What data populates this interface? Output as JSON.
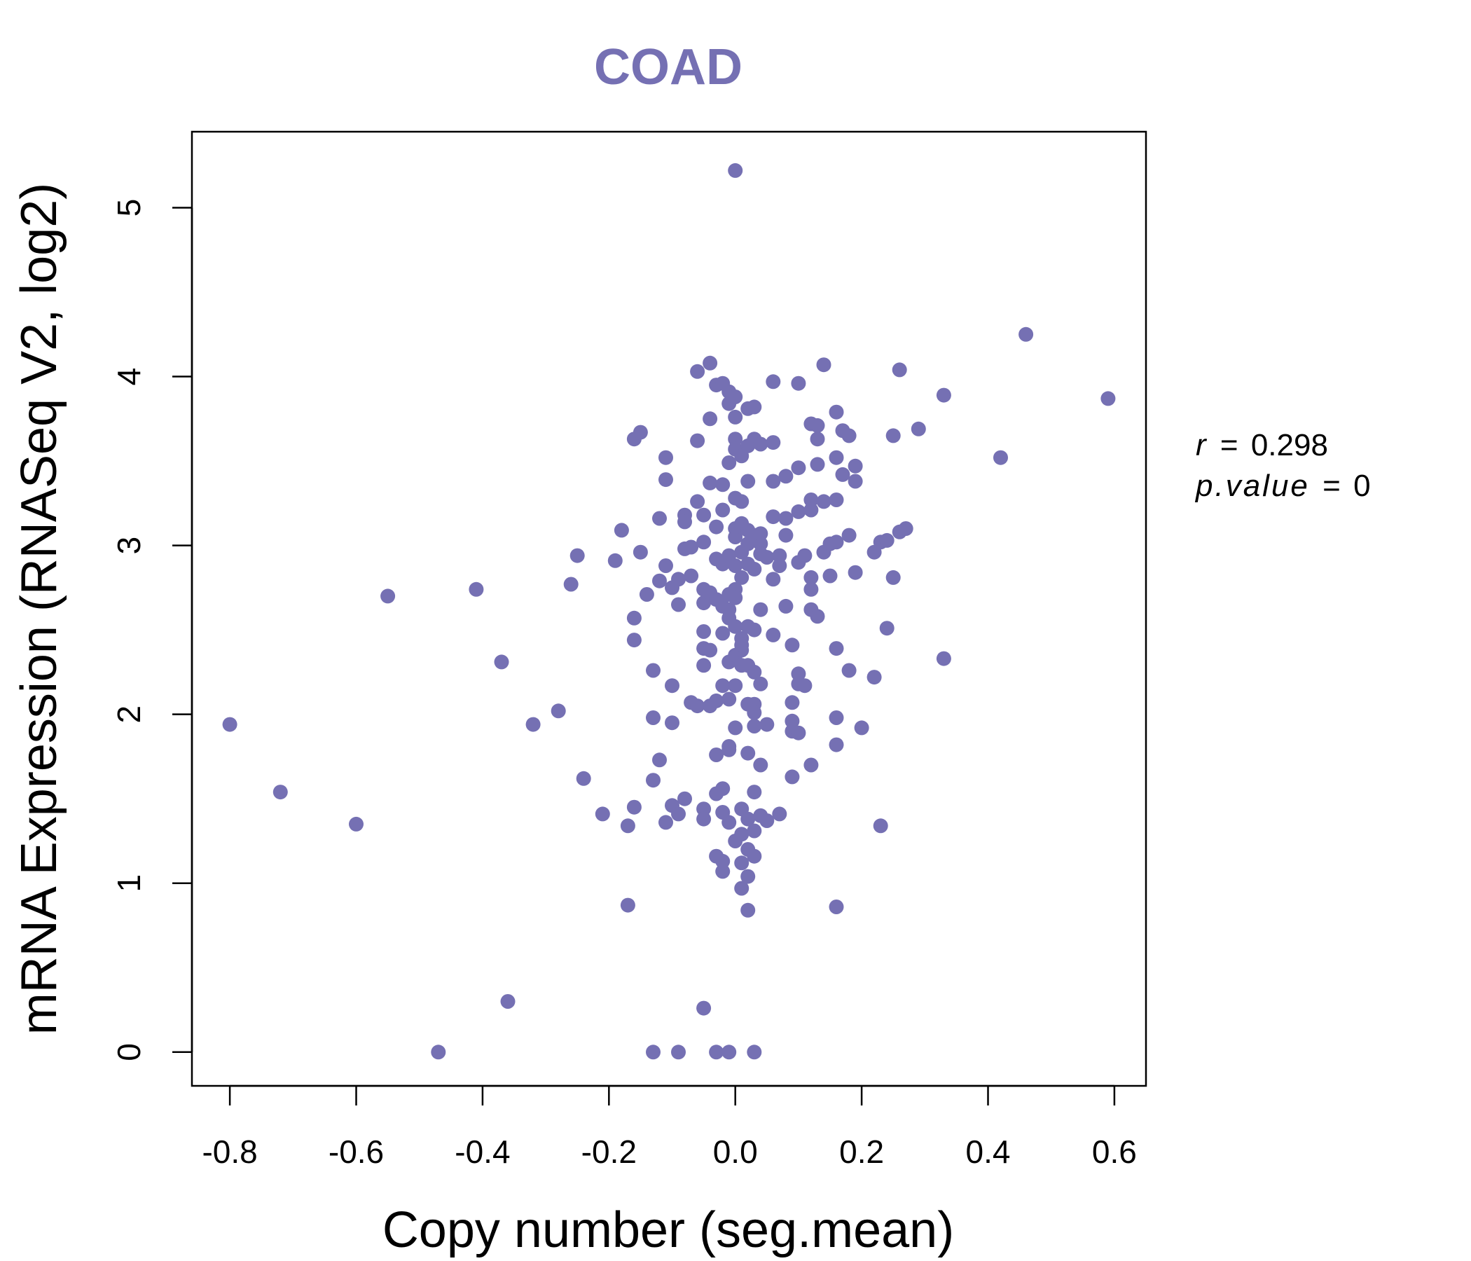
{
  "chart_data": {
    "type": "scatter",
    "title": "COAD",
    "xlabel": "Copy number (seg.mean)",
    "ylabel": "mRNA Expression (RNASeq V2, log2)",
    "xlim": [
      -0.86,
      0.65
    ],
    "ylim": [
      -0.2,
      5.45
    ],
    "xticks": [
      -0.8,
      -0.6,
      -0.4,
      -0.2,
      0.0,
      0.2,
      0.4,
      0.6
    ],
    "xtick_labels": [
      "-0.8",
      "-0.6",
      "-0.4",
      "-0.2",
      "0.0",
      "0.2",
      "0.4",
      "0.6"
    ],
    "yticks": [
      0,
      1,
      2,
      3,
      4,
      5
    ],
    "ytick_labels": [
      "0",
      "1",
      "2",
      "3",
      "4",
      "5"
    ],
    "stats": {
      "r_label": "r",
      "r_value": "0.298",
      "p_label": "p.value",
      "p_value": "0"
    },
    "colors": {
      "point": "#7570b3",
      "title": "#7570b3",
      "axis": "#000000"
    },
    "points": [
      [
        -0.8,
        1.94
      ],
      [
        -0.72,
        1.54
      ],
      [
        -0.6,
        1.35
      ],
      [
        -0.55,
        2.7
      ],
      [
        -0.47,
        0.0
      ],
      [
        -0.41,
        2.74
      ],
      [
        -0.37,
        2.31
      ],
      [
        -0.36,
        0.3
      ],
      [
        -0.32,
        1.94
      ],
      [
        -0.28,
        2.02
      ],
      [
        -0.26,
        2.77
      ],
      [
        -0.25,
        2.94
      ],
      [
        -0.24,
        1.62
      ],
      [
        -0.21,
        1.41
      ],
      [
        -0.19,
        2.91
      ],
      [
        -0.18,
        3.09
      ],
      [
        -0.17,
        1.34
      ],
      [
        -0.17,
        0.87
      ],
      [
        -0.16,
        2.44
      ],
      [
        -0.16,
        3.63
      ],
      [
        -0.15,
        3.67
      ],
      [
        -0.16,
        2.57
      ],
      [
        -0.16,
        1.45
      ],
      [
        -0.15,
        2.96
      ],
      [
        -0.14,
        2.71
      ],
      [
        -0.13,
        1.98
      ],
      [
        -0.13,
        2.26
      ],
      [
        -0.13,
        1.61
      ],
      [
        -0.12,
        1.73
      ],
      [
        -0.12,
        2.79
      ],
      [
        -0.12,
        3.16
      ],
      [
        -0.11,
        3.52
      ],
      [
        -0.11,
        3.39
      ],
      [
        -0.11,
        2.88
      ],
      [
        -0.11,
        1.36
      ],
      [
        -0.1,
        2.17
      ],
      [
        -0.1,
        1.95
      ],
      [
        -0.1,
        2.75
      ],
      [
        -0.1,
        1.46
      ],
      [
        -0.09,
        2.8
      ],
      [
        -0.09,
        1.41
      ],
      [
        -0.09,
        2.65
      ],
      [
        -0.08,
        3.18
      ],
      [
        -0.08,
        3.14
      ],
      [
        -0.08,
        2.98
      ],
      [
        -0.08,
        1.5
      ],
      [
        -0.07,
        2.07
      ],
      [
        -0.07,
        2.99
      ],
      [
        -0.07,
        2.82
      ],
      [
        -0.06,
        3.62
      ],
      [
        -0.06,
        3.26
      ],
      [
        -0.06,
        4.03
      ],
      [
        -0.06,
        2.05
      ],
      [
        -0.05,
        2.49
      ],
      [
        -0.05,
        2.39
      ],
      [
        -0.05,
        3.02
      ],
      [
        -0.05,
        2.29
      ],
      [
        -0.05,
        1.44
      ],
      [
        -0.05,
        1.38
      ],
      [
        -0.05,
        2.74
      ],
      [
        -0.05,
        2.66
      ],
      [
        -0.05,
        3.18
      ],
      [
        -0.04,
        4.08
      ],
      [
        -0.04,
        3.75
      ],
      [
        -0.04,
        3.37
      ],
      [
        -0.04,
        2.05
      ],
      [
        -0.04,
        2.38
      ],
      [
        -0.04,
        2.72
      ],
      [
        -0.03,
        3.95
      ],
      [
        -0.03,
        3.11
      ],
      [
        -0.03,
        2.92
      ],
      [
        -0.03,
        2.68
      ],
      [
        -0.03,
        2.08
      ],
      [
        -0.03,
        1.76
      ],
      [
        -0.03,
        1.53
      ],
      [
        -0.03,
        1.16
      ],
      [
        -0.03,
        0.0
      ],
      [
        -0.02,
        3.96
      ],
      [
        -0.02,
        3.36
      ],
      [
        -0.02,
        3.21
      ],
      [
        -0.02,
        2.89
      ],
      [
        -0.02,
        2.48
      ],
      [
        -0.02,
        2.17
      ],
      [
        -0.02,
        1.56
      ],
      [
        -0.02,
        1.42
      ],
      [
        -0.02,
        1.13
      ],
      [
        -0.02,
        1.07
      ],
      [
        -0.02,
        2.64
      ],
      [
        -0.01,
        3.91
      ],
      [
        -0.01,
        3.49
      ],
      [
        -0.01,
        2.94
      ],
      [
        -0.01,
        2.71
      ],
      [
        -0.01,
        2.57
      ],
      [
        -0.01,
        2.31
      ],
      [
        -0.01,
        1.79
      ],
      [
        -0.01,
        0.0
      ],
      [
        -0.01,
        2.09
      ],
      [
        -0.01,
        2.62
      ],
      [
        0.0,
        5.22
      ],
      [
        -0.01,
        3.84
      ],
      [
        0.0,
        3.63
      ],
      [
        0.0,
        3.28
      ],
      [
        0.0,
        3.1
      ],
      [
        0.0,
        2.74
      ],
      [
        0.0,
        2.52
      ],
      [
        0.0,
        2.35
      ],
      [
        0.0,
        2.17
      ],
      [
        -0.01,
        1.81
      ],
      [
        -0.01,
        1.36
      ],
      [
        0.0,
        1.25
      ],
      [
        0.0,
        2.69
      ],
      [
        0.0,
        3.57
      ],
      [
        0.0,
        3.76
      ],
      [
        0.0,
        3.88
      ],
      [
        0.0,
        3.05
      ],
      [
        0.0,
        2.88
      ],
      [
        0.0,
        1.92
      ],
      [
        0.01,
        3.53
      ],
      [
        0.01,
        3.26
      ],
      [
        0.01,
        3.13
      ],
      [
        0.01,
        2.96
      ],
      [
        0.01,
        2.81
      ],
      [
        0.01,
        2.45
      ],
      [
        0.01,
        2.29
      ],
      [
        0.01,
        1.44
      ],
      [
        0.01,
        1.12
      ],
      [
        0.01,
        2.38
      ],
      [
        0.01,
        1.29
      ],
      [
        0.01,
        0.97
      ],
      [
        0.01,
        3.11
      ],
      [
        0.01,
        2.41
      ],
      [
        0.02,
        3.81
      ],
      [
        0.02,
        3.59
      ],
      [
        0.02,
        3.38
      ],
      [
        0.02,
        3.09
      ],
      [
        0.02,
        2.52
      ],
      [
        0.02,
        2.29
      ],
      [
        0.02,
        2.06
      ],
      [
        0.02,
        1.77
      ],
      [
        0.02,
        1.38
      ],
      [
        0.02,
        1.04
      ],
      [
        0.02,
        0.84
      ],
      [
        0.02,
        3.01
      ],
      [
        0.02,
        2.89
      ],
      [
        0.02,
        1.2
      ],
      [
        0.03,
        3.82
      ],
      [
        0.03,
        3.63
      ],
      [
        0.03,
        3.06
      ],
      [
        0.03,
        2.86
      ],
      [
        0.03,
        2.5
      ],
      [
        0.03,
        2.25
      ],
      [
        0.03,
        2.06
      ],
      [
        0.03,
        1.54
      ],
      [
        0.03,
        0.0
      ],
      [
        0.03,
        2.01
      ],
      [
        0.03,
        1.93
      ],
      [
        0.03,
        1.16
      ],
      [
        0.03,
        1.31
      ],
      [
        0.04,
        3.6
      ],
      [
        0.04,
        3.01
      ],
      [
        0.04,
        2.95
      ],
      [
        0.04,
        2.62
      ],
      [
        0.04,
        1.7
      ],
      [
        0.04,
        1.4
      ],
      [
        0.04,
        2.18
      ],
      [
        0.04,
        3.07
      ],
      [
        0.05,
        2.93
      ],
      [
        0.05,
        1.94
      ],
      [
        0.05,
        1.37
      ],
      [
        0.06,
        3.97
      ],
      [
        0.06,
        3.38
      ],
      [
        0.06,
        3.17
      ],
      [
        0.06,
        2.8
      ],
      [
        0.06,
        2.47
      ],
      [
        0.06,
        3.61
      ],
      [
        0.07,
        2.94
      ],
      [
        0.07,
        2.88
      ],
      [
        0.07,
        1.41
      ],
      [
        0.08,
        3.16
      ],
      [
        0.08,
        2.64
      ],
      [
        0.08,
        3.41
      ],
      [
        0.08,
        3.06
      ],
      [
        0.09,
        2.41
      ],
      [
        0.09,
        2.07
      ],
      [
        0.09,
        1.96
      ],
      [
        0.09,
        1.63
      ],
      [
        0.09,
        1.9
      ],
      [
        0.1,
        3.46
      ],
      [
        0.1,
        3.2
      ],
      [
        0.1,
        2.9
      ],
      [
        0.1,
        3.96
      ],
      [
        0.1,
        2.24
      ],
      [
        0.1,
        2.18
      ],
      [
        0.1,
        1.89
      ],
      [
        0.11,
        2.94
      ],
      [
        0.11,
        2.17
      ],
      [
        0.12,
        3.72
      ],
      [
        0.12,
        3.27
      ],
      [
        0.12,
        3.21
      ],
      [
        0.12,
        2.81
      ],
      [
        0.12,
        2.74
      ],
      [
        0.12,
        2.62
      ],
      [
        0.12,
        1.7
      ],
      [
        0.13,
        3.71
      ],
      [
        0.13,
        3.63
      ],
      [
        0.13,
        3.48
      ],
      [
        0.13,
        2.58
      ],
      [
        0.14,
        3.26
      ],
      [
        0.14,
        2.96
      ],
      [
        0.14,
        4.07
      ],
      [
        0.15,
        3.01
      ],
      [
        0.15,
        2.82
      ],
      [
        0.16,
        3.27
      ],
      [
        0.16,
        3.79
      ],
      [
        0.16,
        3.52
      ],
      [
        0.16,
        3.02
      ],
      [
        0.16,
        2.39
      ],
      [
        0.16,
        1.98
      ],
      [
        0.16,
        1.82
      ],
      [
        0.16,
        0.86
      ],
      [
        0.17,
        3.68
      ],
      [
        0.17,
        3.42
      ],
      [
        0.18,
        3.65
      ],
      [
        0.18,
        3.06
      ],
      [
        0.18,
        2.26
      ],
      [
        0.19,
        3.47
      ],
      [
        0.19,
        3.38
      ],
      [
        0.19,
        2.84
      ],
      [
        0.2,
        1.92
      ],
      [
        0.22,
        2.96
      ],
      [
        0.22,
        2.22
      ],
      [
        0.23,
        3.02
      ],
      [
        0.23,
        1.34
      ],
      [
        0.24,
        3.03
      ],
      [
        0.24,
        2.51
      ],
      [
        0.25,
        2.81
      ],
      [
        0.25,
        3.65
      ],
      [
        0.26,
        3.08
      ],
      [
        0.26,
        4.04
      ],
      [
        0.27,
        3.1
      ],
      [
        0.29,
        3.69
      ],
      [
        0.33,
        3.89
      ],
      [
        0.33,
        2.33
      ],
      [
        0.42,
        3.52
      ],
      [
        0.46,
        4.25
      ],
      [
        0.59,
        3.87
      ],
      [
        -0.13,
        0.0
      ],
      [
        -0.09,
        0.0
      ],
      [
        -0.05,
        0.26
      ]
    ]
  }
}
